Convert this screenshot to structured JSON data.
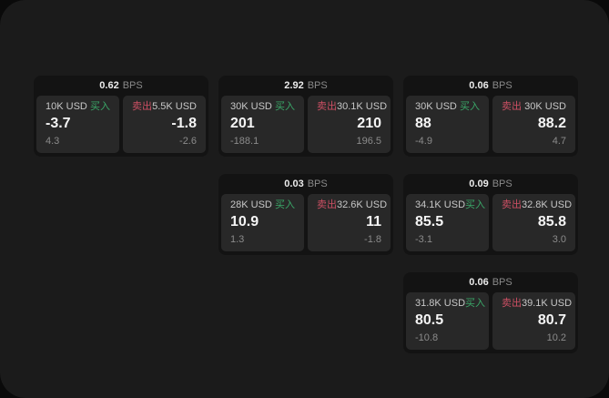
{
  "labels": {
    "bps_unit": "BPS",
    "buy": "买入",
    "sell": "卖出"
  },
  "theme": {
    "page_bg": "#0a0a0a",
    "surface_bg": "#1b1b1b",
    "card_bg": "#131313",
    "panel_bg": "#282828",
    "buy_color": "#3aa768",
    "sell_color": "#cc4f63"
  },
  "cards": [
    {
      "bps": "0.62",
      "buy": {
        "amount": "10K USD",
        "value": "-3.7",
        "change": "4.3"
      },
      "sell": {
        "amount": "5.5K USD",
        "value": "-1.8",
        "change": "-2.6"
      }
    },
    {
      "bps": "2.92",
      "buy": {
        "amount": "30K USD",
        "value": "201",
        "change": "-188.1"
      },
      "sell": {
        "amount": "30.1K USD",
        "value": "210",
        "change": "196.5"
      }
    },
    {
      "bps": "0.06",
      "buy": {
        "amount": "30K USD",
        "value": "88",
        "change": "-4.9"
      },
      "sell": {
        "amount": "30K USD",
        "value": "88.2",
        "change": "4.7"
      }
    },
    {
      "bps": "0.03",
      "buy": {
        "amount": "28K USD",
        "value": "10.9",
        "change": "1.3"
      },
      "sell": {
        "amount": "32.6K USD",
        "value": "11",
        "change": "-1.8"
      }
    },
    {
      "bps": "0.09",
      "buy": {
        "amount": "34.1K USD",
        "value": "85.5",
        "change": "-3.1"
      },
      "sell": {
        "amount": "32.8K USD",
        "value": "85.8",
        "change": "3.0"
      }
    },
    {
      "bps": "0.06",
      "buy": {
        "amount": "31.8K USD",
        "value": "80.5",
        "change": "-10.8"
      },
      "sell": {
        "amount": "39.1K USD",
        "value": "80.7",
        "change": "10.2"
      }
    }
  ]
}
